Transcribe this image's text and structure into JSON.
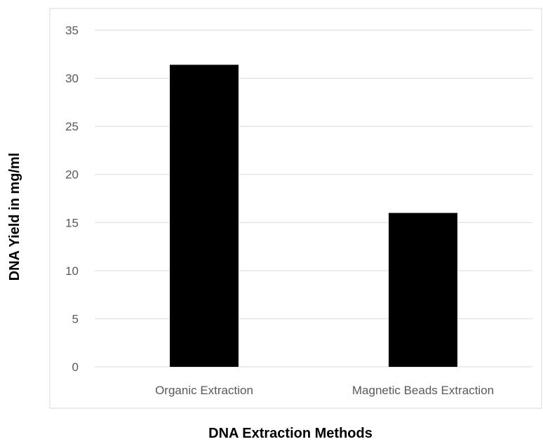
{
  "chart_data": {
    "type": "bar",
    "categories": [
      "Organic Extraction",
      "Magnetic Beads Extraction"
    ],
    "values": [
      31.4,
      16.0
    ],
    "title": "",
    "xlabel": "DNA Extraction Methods",
    "ylabel": "DNA Yield in mg/ml",
    "ylim": [
      0,
      35
    ],
    "yticks": [
      0,
      5,
      10,
      15,
      20,
      25,
      30,
      35
    ],
    "grid": true,
    "legend": "none",
    "colors": {
      "bar": "#000000",
      "grid": "#d9d9d9",
      "frame": "#d9d9d9",
      "tick_text": "#595959",
      "axis_title": "#000000"
    }
  }
}
